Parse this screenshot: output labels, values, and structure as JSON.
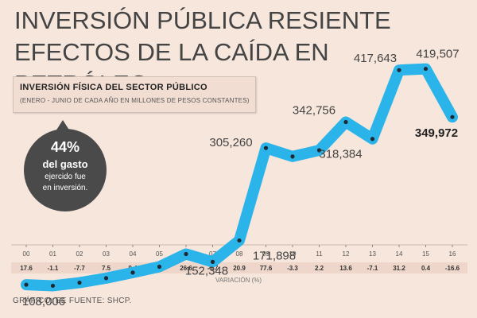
{
  "title_line1": "INVERSIÓN PÚBLICA RESIENTE",
  "title_line2": "EFECTOS DE LA CAÍDA EN PETRÓLEO",
  "box": {
    "heading": "INVERSIÓN FÍSICA DEL SECTOR PÚBLICO",
    "subheading": "(ENERO - JUNIO DE CADA AÑO EN MILLONES DE PESOS CONSTANTES)"
  },
  "bubble": {
    "percent": "44%",
    "line2": "del gasto",
    "line3": "ejercido fue",
    "line4": "en inversión."
  },
  "source": "GRÁFICO: EE  FUENTE: SHCP.",
  "colors": {
    "line": "#2ab4ea",
    "background": "#f6e6dc",
    "bubble": "#4a4a4a"
  },
  "chart_data": {
    "type": "line",
    "x": [
      "00",
      "01",
      "02",
      "03",
      "04",
      "05",
      "06",
      "07",
      "08",
      "09",
      "10",
      "11",
      "12",
      "13",
      "14",
      "15",
      "16"
    ],
    "values": [
      108006,
      106500,
      111000,
      117500,
      125500,
      134000,
      152348,
      141000,
      171898,
      305260,
      293000,
      302000,
      342756,
      318384,
      417643,
      419507,
      349972
    ],
    "variation": [
      "17.6",
      "-1.1",
      "-7.7",
      "7.5",
      "9.4",
      "3.8",
      "26.6",
      "-6.7",
      "20.9",
      "77.6",
      "-3.3",
      "2.2",
      "13.6",
      "-7.1",
      "31.2",
      "0.4",
      "-16.6"
    ],
    "labels": [
      {
        "index": 0,
        "text": "108,006"
      },
      {
        "index": 6,
        "text": "152,348"
      },
      {
        "index": 8,
        "text": "171,898"
      },
      {
        "index": 9,
        "text": "305,260"
      },
      {
        "index": 12,
        "text": "342,756"
      },
      {
        "index": 13,
        "text": "318,384"
      },
      {
        "index": 14,
        "text": "417,643"
      },
      {
        "index": 15,
        "text": "419,507"
      },
      {
        "index": 16,
        "text": "349,972",
        "bold": true
      }
    ],
    "variation_label": "VARIACIÓN (%)",
    "ylim": [
      60000,
      450000
    ]
  }
}
